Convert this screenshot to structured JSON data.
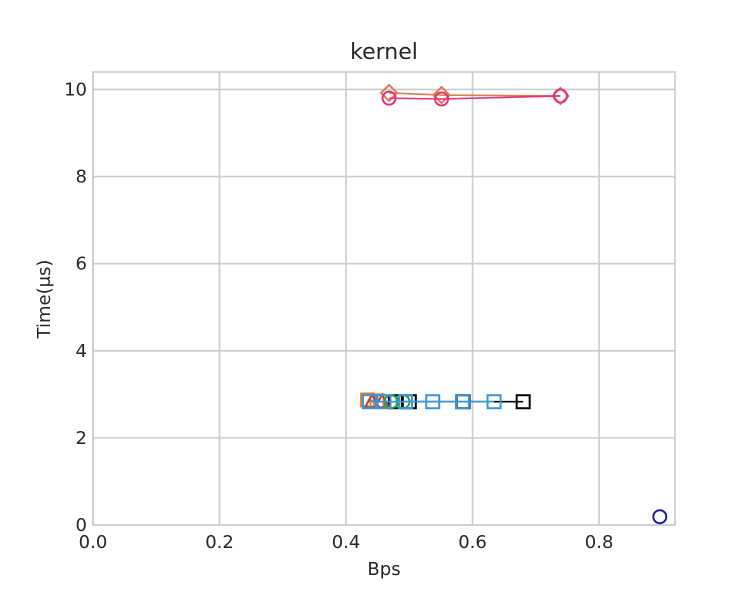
{
  "chart_data": {
    "type": "line",
    "title": "kernel",
    "xlabel": "Bps",
    "ylabel": "Time(μs)",
    "xlim": [
      0.0,
      0.92
    ],
    "ylim": [
      0,
      10.4
    ],
    "xticks": [
      0.0,
      0.2,
      0.4,
      0.6,
      0.8
    ],
    "xtick_labels": [
      "0.0",
      "0.2",
      "0.4",
      "0.6",
      "0.8"
    ],
    "yticks": [
      0,
      2,
      4,
      6,
      8,
      10
    ],
    "ytick_labels": [
      "0",
      "2",
      "4",
      "6",
      "8",
      "10"
    ],
    "grid": true,
    "series": [
      {
        "color": "#d6804f",
        "marker": "diamond",
        "line": true,
        "x": [
          0.468,
          0.551,
          0.739
        ],
        "y": [
          9.92,
          9.87,
          9.85
        ]
      },
      {
        "color": "#e8317a",
        "marker": "circle",
        "line": true,
        "x": [
          0.468,
          0.551,
          0.739
        ],
        "y": [
          9.8,
          9.78,
          9.85
        ]
      },
      {
        "color": "#000000",
        "marker": "square",
        "line": true,
        "x": [
          0.478,
          0.5,
          0.585,
          0.68
        ],
        "y": [
          2.83,
          2.83,
          2.83,
          2.83
        ]
      },
      {
        "color": "#e67e22",
        "marker": "square",
        "line": true,
        "x": [
          0.434,
          0.449
        ],
        "y": [
          2.87,
          2.85
        ]
      },
      {
        "color": "#c0392b",
        "marker": "triangle",
        "line": true,
        "x": [
          0.441,
          0.457
        ],
        "y": [
          2.83,
          2.83
        ]
      },
      {
        "color": "#2ca02c",
        "marker": "circle",
        "line": true,
        "x": [
          0.471,
          0.49
        ],
        "y": [
          2.83,
          2.83
        ]
      },
      {
        "color": "#3498db",
        "marker": "square",
        "line": true,
        "x": [
          0.437,
          0.46,
          0.494,
          0.537,
          0.584,
          0.634
        ],
        "y": [
          2.83,
          2.83,
          2.83,
          2.83,
          2.83,
          2.83
        ]
      },
      {
        "color": "#1f1f8f",
        "marker": "circle",
        "line": false,
        "x": [
          0.896
        ],
        "y": [
          0.19
        ]
      }
    ]
  }
}
